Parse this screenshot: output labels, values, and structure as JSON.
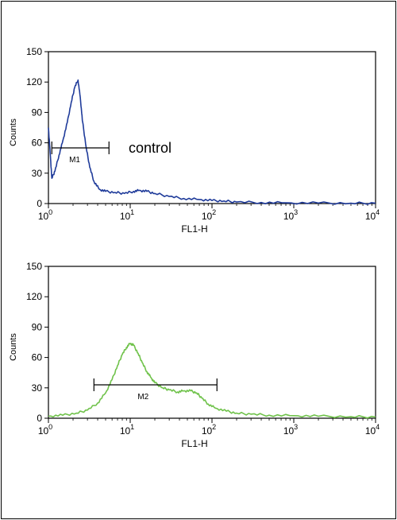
{
  "chart_data": [
    {
      "type": "line",
      "title": "",
      "xlabel": "FL1-H",
      "ylabel": "Counts",
      "x_scale": "log",
      "xlim": [
        1,
        10000
      ],
      "ylim": [
        0,
        150
      ],
      "x_ticks": [
        {
          "base": "10",
          "exp": "0"
        },
        {
          "base": "10",
          "exp": "1"
        },
        {
          "base": "10",
          "exp": "2"
        },
        {
          "base": "10",
          "exp": "3"
        },
        {
          "base": "10",
          "exp": "4"
        }
      ],
      "y_ticks": [
        "0",
        "30",
        "60",
        "90",
        "120",
        "150"
      ],
      "series": [
        {
          "color": "#1f3b9a",
          "points": [
            [
              1.0,
              75
            ],
            [
              1.05,
              50
            ],
            [
              1.1,
              25
            ],
            [
              1.2,
              32
            ],
            [
              1.35,
              48
            ],
            [
              1.5,
              62
            ],
            [
              1.7,
              80
            ],
            [
              1.9,
              100
            ],
            [
              2.1,
              115
            ],
            [
              2.3,
              122
            ],
            [
              2.45,
              105
            ],
            [
              2.6,
              82
            ],
            [
              2.9,
              55
            ],
            [
              3.2,
              36
            ],
            [
              3.6,
              22
            ],
            [
              4.2,
              14
            ],
            [
              5.0,
              12
            ],
            [
              6.5,
              11
            ],
            [
              8.5,
              10
            ],
            [
              11,
              12
            ],
            [
              13,
              13
            ],
            [
              16,
              12
            ],
            [
              20,
              10
            ],
            [
              30,
              7
            ],
            [
              45,
              5
            ],
            [
              70,
              4
            ],
            [
              100,
              3
            ],
            [
              140,
              2.5
            ],
            [
              200,
              1.5
            ],
            [
              400,
              1
            ],
            [
              800,
              0.7
            ],
            [
              2000,
              0.5
            ],
            [
              5000,
              0.3
            ],
            [
              10000,
              0.3
            ]
          ]
        }
      ],
      "annotations": [
        {
          "text": "control"
        }
      ],
      "marker": {
        "label": "M1",
        "x_range": [
          1.1,
          5.5
        ],
        "y": 55
      }
    },
    {
      "type": "line",
      "title": "",
      "xlabel": "FL1-H",
      "ylabel": "Counts",
      "x_scale": "log",
      "xlim": [
        1,
        10000
      ],
      "ylim": [
        0,
        150
      ],
      "x_ticks": [
        {
          "base": "10",
          "exp": "0"
        },
        {
          "base": "10",
          "exp": "1"
        },
        {
          "base": "10",
          "exp": "2"
        },
        {
          "base": "10",
          "exp": "3"
        },
        {
          "base": "10",
          "exp": "4"
        }
      ],
      "y_ticks": [
        "0",
        "30",
        "60",
        "90",
        "120",
        "150"
      ],
      "series": [
        {
          "color": "#6fc24a",
          "points": [
            [
              1.0,
              2
            ],
            [
              1.5,
              3
            ],
            [
              2.2,
              5
            ],
            [
              3.0,
              8
            ],
            [
              4.0,
              15
            ],
            [
              5.0,
              25
            ],
            [
              6.0,
              38
            ],
            [
              7.0,
              52
            ],
            [
              8.0,
              63
            ],
            [
              9.0,
              70
            ],
            [
              10.0,
              74
            ],
            [
              11.0,
              72
            ],
            [
              12.5,
              64
            ],
            [
              14.0,
              55
            ],
            [
              16.0,
              46
            ],
            [
              18.0,
              40
            ],
            [
              20.0,
              35
            ],
            [
              25.0,
              30
            ],
            [
              30.0,
              28
            ],
            [
              38.0,
              26
            ],
            [
              45.0,
              27
            ],
            [
              55.0,
              27
            ],
            [
              65.0,
              25
            ],
            [
              75.0,
              20
            ],
            [
              90.0,
              14
            ],
            [
              110.0,
              10
            ],
            [
              150.0,
              7
            ],
            [
              200.0,
              5
            ],
            [
              300.0,
              4
            ],
            [
              500.0,
              3
            ],
            [
              1000.0,
              2.5
            ],
            [
              2000.0,
              2
            ],
            [
              5000.0,
              1.5
            ],
            [
              10000.0,
              1.2
            ]
          ]
        }
      ],
      "marker": {
        "label": "M2",
        "x_range": [
          3.6,
          115
        ],
        "y": 33
      }
    }
  ]
}
